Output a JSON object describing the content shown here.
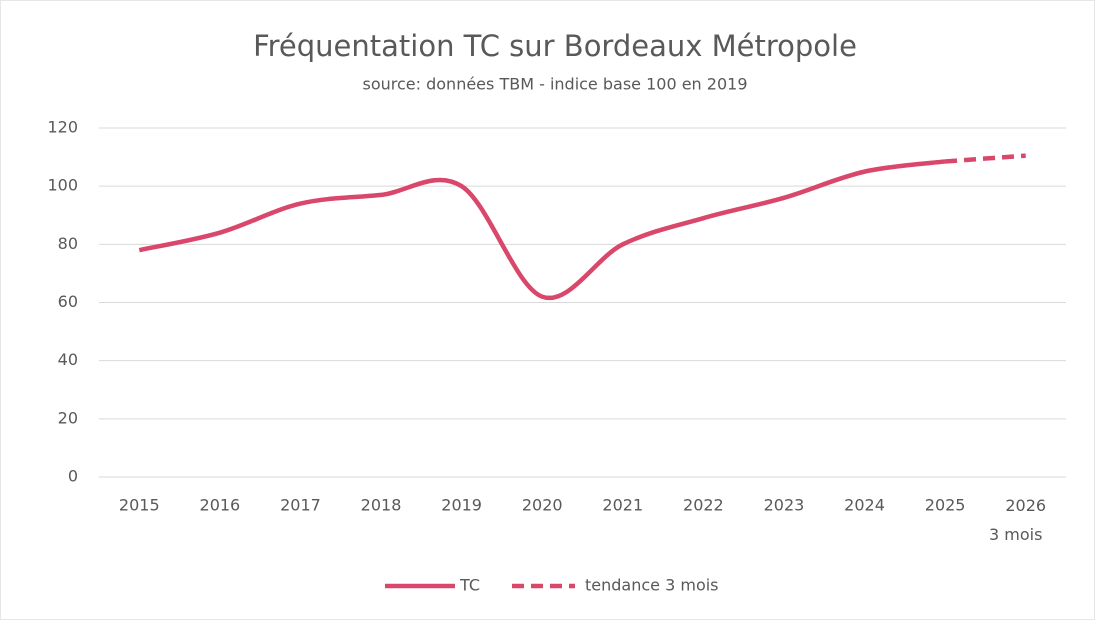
{
  "chart_data": {
    "type": "line",
    "title": "Fréquentation TC sur Bordeaux Métropole",
    "subtitle": "source: données TBM - indice base 100 en 2019",
    "categories": [
      "2015",
      "2016",
      "2017",
      "2018",
      "2019",
      "2020",
      "2021",
      "2022",
      "2023",
      "2024",
      "2025",
      "2026\n3 mois"
    ],
    "series": [
      {
        "name": "TC",
        "color": "#d9476b",
        "dash": false,
        "values": [
          78,
          84,
          94,
          97,
          100,
          62,
          80,
          89,
          96,
          105,
          108.5,
          null
        ]
      },
      {
        "name": "tendance 3 mois",
        "color": "#d9476b",
        "dash": true,
        "values": [
          null,
          null,
          null,
          null,
          null,
          null,
          null,
          null,
          null,
          null,
          108.5,
          110.5
        ]
      }
    ],
    "ylim": [
      0,
      120
    ],
    "yticks": [
      0,
      20,
      40,
      60,
      80,
      100,
      120
    ],
    "grid": true,
    "smooth": true,
    "legend": "bottom"
  }
}
